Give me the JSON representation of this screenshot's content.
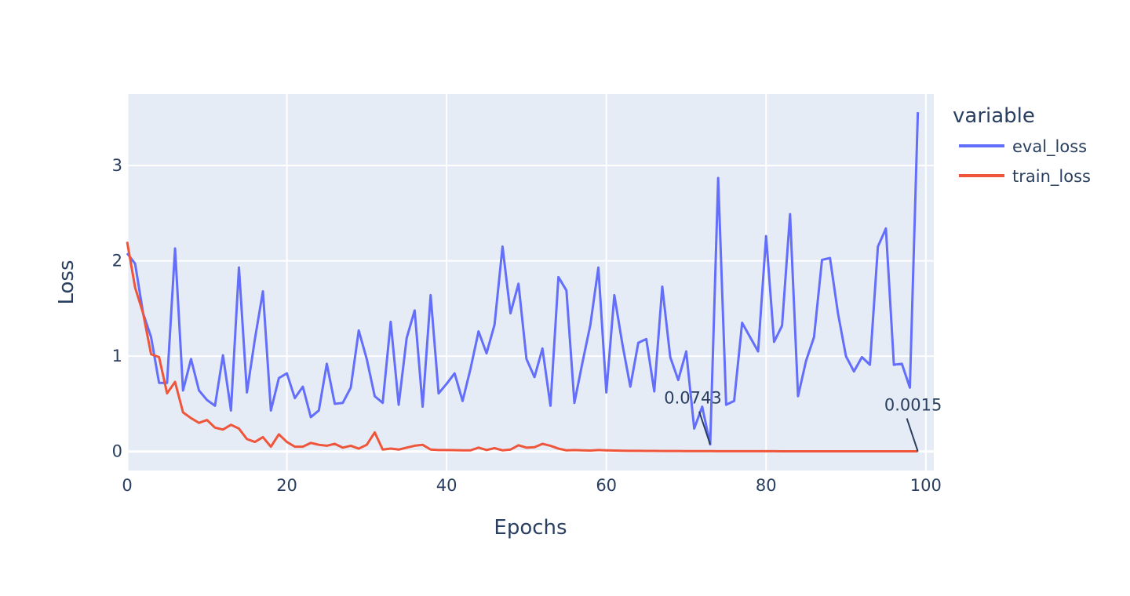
{
  "chart_data": {
    "type": "line",
    "xlabel": "Epochs",
    "ylabel": "Loss",
    "xlim": [
      0,
      101
    ],
    "ylim": [
      -0.2,
      3.75
    ],
    "x_ticks": [
      0,
      20,
      40,
      60,
      80,
      100
    ],
    "y_ticks": [
      0,
      1,
      2,
      3
    ],
    "grid": true,
    "legend": {
      "title": "variable",
      "placement": "right"
    },
    "colors": {
      "plot_bg": "#e5ecf6",
      "grid": "#ffffff",
      "text": "#2a3f5f"
    },
    "x": [
      0,
      1,
      2,
      3,
      4,
      5,
      6,
      7,
      8,
      9,
      10,
      11,
      12,
      13,
      14,
      15,
      16,
      17,
      18,
      19,
      20,
      21,
      22,
      23,
      24,
      25,
      26,
      27,
      28,
      29,
      30,
      31,
      32,
      33,
      34,
      35,
      36,
      37,
      38,
      39,
      40,
      41,
      42,
      43,
      44,
      45,
      46,
      47,
      48,
      49,
      50,
      51,
      52,
      53,
      54,
      55,
      56,
      57,
      58,
      59,
      60,
      61,
      62,
      63,
      64,
      65,
      66,
      67,
      68,
      69,
      70,
      71,
      72,
      73,
      74,
      75,
      76,
      77,
      78,
      79,
      80,
      81,
      82,
      83,
      84,
      85,
      86,
      87,
      88,
      89,
      90,
      91,
      92,
      93,
      94,
      95,
      96,
      97,
      98,
      99
    ],
    "series": [
      {
        "name": "eval_loss",
        "color": "#636efa",
        "values": [
          2.08,
          1.97,
          1.45,
          1.2,
          0.72,
          0.72,
          2.13,
          0.64,
          0.97,
          0.64,
          0.54,
          0.48,
          1.01,
          0.43,
          1.93,
          0.62,
          1.18,
          1.68,
          0.43,
          0.77,
          0.82,
          0.56,
          0.68,
          0.36,
          0.43,
          0.92,
          0.5,
          0.51,
          0.67,
          1.27,
          0.97,
          0.58,
          0.51,
          1.36,
          0.49,
          1.19,
          1.48,
          0.47,
          1.64,
          0.61,
          0.71,
          0.82,
          0.53,
          0.87,
          1.26,
          1.03,
          1.33,
          2.15,
          1.45,
          1.76,
          0.97,
          0.78,
          1.08,
          0.48,
          1.83,
          1.69,
          0.51,
          0.93,
          1.33,
          1.93,
          0.62,
          1.64,
          1.13,
          0.68,
          1.14,
          1.18,
          0.63,
          1.73,
          0.99,
          0.75,
          1.05,
          0.24,
          0.47,
          0.0743,
          2.87,
          0.49,
          0.53,
          1.35,
          1.2,
          1.05,
          2.26,
          1.15,
          1.32,
          2.49,
          0.58,
          0.95,
          1.2,
          2.01,
          2.03,
          1.45,
          1.0,
          0.84,
          0.99,
          0.91,
          2.15,
          2.34,
          0.91,
          0.92,
          0.67,
          3.56
        ]
      },
      {
        "name": "train_loss",
        "color": "#ef553b",
        "values": [
          2.2,
          1.72,
          1.45,
          1.02,
          0.99,
          0.61,
          0.73,
          0.41,
          0.35,
          0.3,
          0.33,
          0.25,
          0.23,
          0.28,
          0.24,
          0.13,
          0.1,
          0.15,
          0.05,
          0.18,
          0.1,
          0.05,
          0.05,
          0.09,
          0.07,
          0.06,
          0.08,
          0.04,
          0.06,
          0.03,
          0.07,
          0.2,
          0.02,
          0.03,
          0.02,
          0.04,
          0.06,
          0.07,
          0.02,
          0.015,
          0.015,
          0.014,
          0.012,
          0.012,
          0.04,
          0.015,
          0.035,
          0.012,
          0.02,
          0.065,
          0.04,
          0.045,
          0.08,
          0.06,
          0.03,
          0.012,
          0.015,
          0.012,
          0.01,
          0.015,
          0.012,
          0.01,
          0.008,
          0.007,
          0.007,
          0.006,
          0.006,
          0.005,
          0.005,
          0.005,
          0.004,
          0.004,
          0.004,
          0.004,
          0.003,
          0.003,
          0.003,
          0.003,
          0.003,
          0.003,
          0.003,
          0.003,
          0.002,
          0.002,
          0.002,
          0.002,
          0.002,
          0.002,
          0.002,
          0.002,
          0.002,
          0.002,
          0.002,
          0.002,
          0.002,
          0.002,
          0.002,
          0.0015,
          0.0015,
          0.0015
        ]
      }
    ],
    "annotations": [
      {
        "text": "0.0743",
        "x": 73,
        "y": 0.0743
      },
      {
        "text": "0.0015",
        "x": 99,
        "y": 0.0015
      }
    ]
  }
}
